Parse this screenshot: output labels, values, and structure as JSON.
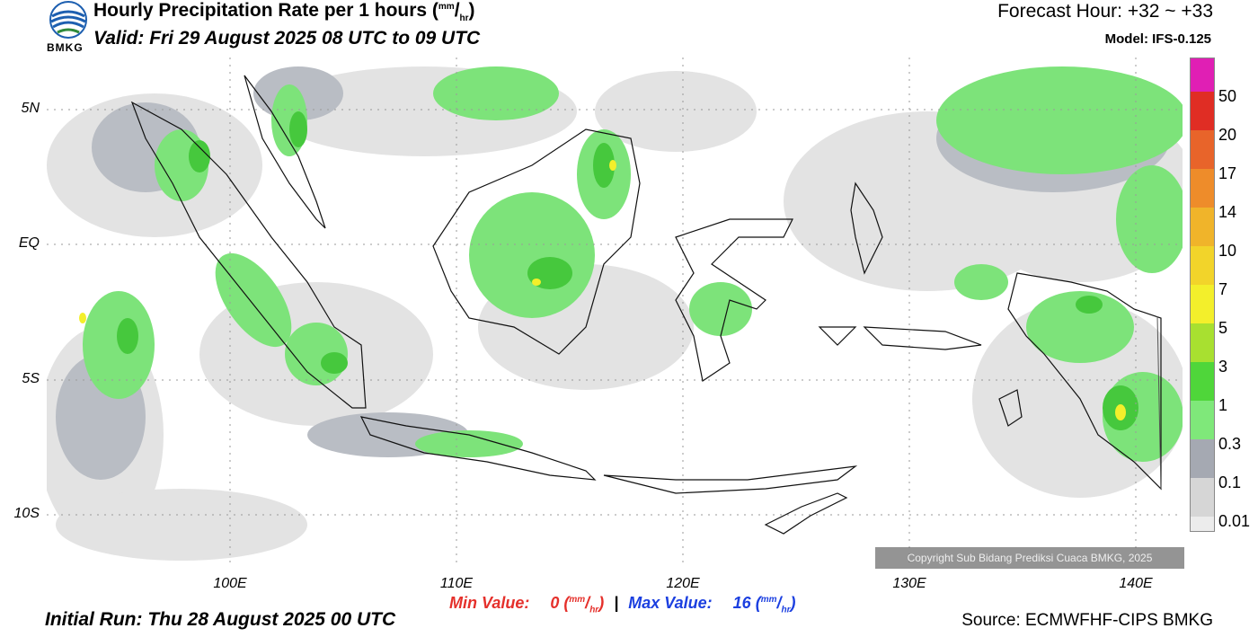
{
  "header": {
    "title": "Hourly Precipitation Rate per 1 hours (",
    "unit_num": "mm",
    "unit_den": "hr",
    "title_close": ")",
    "valid": "Valid: Fri 29 August 2025 08 UTC to 09 UTC",
    "forecast_hour": "Forecast Hour: +32 ~ +33",
    "model": "Model: IFS-0.125",
    "logo_text": "BMKG"
  },
  "map": {
    "lat_labels": [
      "5N",
      "EQ",
      "5S",
      "10S"
    ],
    "lon_labels": [
      "100E",
      "110E",
      "120E",
      "130E",
      "140E"
    ],
    "copyright": "Copyright Sub Bidang Prediksi Cuaca BMKG, 2025",
    "colors": {
      "land_outline": "#111111",
      "ocean": "#ffffff",
      "rain_light": "#e3e3e3",
      "rain_low": "#a9adb5",
      "rain_mid": "#7de37a",
      "rain_heavy": "#46c83d"
    }
  },
  "colorbar": {
    "labels": [
      "50",
      "20",
      "17",
      "14",
      "10",
      "7",
      "5",
      "3",
      "1",
      "0.3",
      "0.1",
      "0.01"
    ],
    "colors": [
      "#e01fb4",
      "#e02d24",
      "#e8642a",
      "#ee8c2a",
      "#f0b42a",
      "#f2d42a",
      "#f3ef2b",
      "#a8e030",
      "#4fd63a",
      "#7fe87a",
      "#a5a9b2",
      "#d6d6d6",
      "#ececec"
    ]
  },
  "footer": {
    "min_label": "Min Value:",
    "min_value": "0",
    "separator": "|",
    "max_label": "Max Value:",
    "max_value": "16",
    "unit_num": "mm",
    "unit_den": "hr",
    "initial_run": "Initial Run: Thu 28 August 2025 00 UTC",
    "source": "Source: ECMWFHF-CIPS BMKG"
  }
}
